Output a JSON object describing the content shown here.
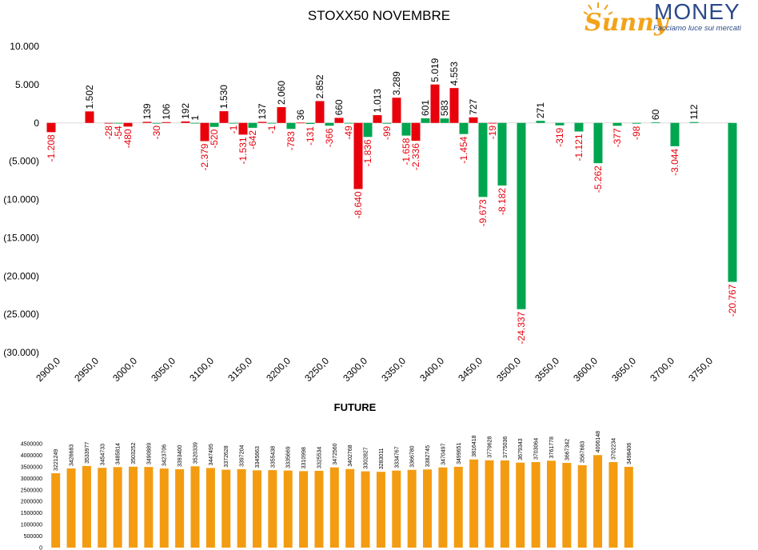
{
  "brand": {
    "name_part1": "Sunny",
    "name_part2": "MONEY",
    "tagline": "Facciamo luce sui mercati",
    "colors": {
      "sun": "#f2a31b",
      "blue": "#2b4a8a"
    }
  },
  "chart_data": [
    {
      "type": "bar",
      "title": "STOXX50 NOVEMBRE",
      "xlabel": "",
      "ylabel": "",
      "ylim": [
        -30000,
        10000
      ],
      "y_ticks": [
        10000,
        5000,
        0,
        -5000,
        -10000,
        -15000,
        -20000,
        -25000,
        -30000
      ],
      "y_tick_labels": [
        "10.000",
        "5.000",
        "0",
        "(5.000)",
        "(10.000)",
        "(15.000)",
        "(20.000)",
        "(25.000)",
        "(30.000)"
      ],
      "x_tick_labels": [
        "2900,0",
        "2950,0",
        "3000,0",
        "3050,0",
        "3100,0",
        "3150,0",
        "3200,0",
        "3250,0",
        "3300,0",
        "3350,0",
        "3400,0",
        "3450,0",
        "3500,0",
        "3550,0",
        "3600,0",
        "3650,0",
        "3700,0",
        "3750,0"
      ],
      "grid": false,
      "legend": "none",
      "colors": {
        "red_series": "#e8000b",
        "green_series": "#00a64f",
        "label_red": "#e8000b",
        "label_black": "#000000"
      },
      "series": [
        {
          "color": "red",
          "points": [
            {
              "x": 2900,
              "value": -1208,
              "label": "-1.208"
            },
            {
              "x": 2950,
              "value": 1502,
              "label": "1.502"
            },
            {
              "x": 2975,
              "value": -28,
              "label": "-28"
            },
            {
              "x": 3000,
              "value": -480,
              "label": "-480"
            },
            {
              "x": 3025,
              "value": 139,
              "label": "139"
            },
            {
              "x": 3050,
              "value": 106,
              "label": "106"
            },
            {
              "x": 3075,
              "value": 192,
              "label": "192"
            },
            {
              "x": 3100,
              "value": -2379,
              "label": "-2.379"
            },
            {
              "x": 3125,
              "value": 1530,
              "label": "1.530"
            },
            {
              "x": 3150,
              "value": -1531,
              "label": "-1.531"
            },
            {
              "x": 3175,
              "value": 137,
              "label": "137"
            },
            {
              "x": 3200,
              "value": 2060,
              "label": "2.060"
            },
            {
              "x": 3225,
              "value": 36,
              "label": "36"
            },
            {
              "x": 3250,
              "value": 2852,
              "label": "2.852"
            },
            {
              "x": 3275,
              "value": 660,
              "label": "660"
            },
            {
              "x": 3300,
              "value": -8640,
              "label": "-8.640"
            },
            {
              "x": 3325,
              "value": 1013,
              "label": "1.013"
            },
            {
              "x": 3350,
              "value": 3289,
              "label": "3.289"
            },
            {
              "x": 3375,
              "value": -2336,
              "label": "-2.336"
            },
            {
              "x": 3400,
              "value": 5019,
              "label": "5.019"
            },
            {
              "x": 3425,
              "value": 4553,
              "label": "4.553"
            },
            {
              "x": 3450,
              "value": 727,
              "label": "727"
            },
            {
              "x": 3475,
              "value": -19,
              "label": "-19"
            }
          ]
        },
        {
          "color": "green",
          "points": [
            {
              "x": 2975,
              "value": -54,
              "label": "-54"
            },
            {
              "x": 3025,
              "value": -30,
              "label": "-30"
            },
            {
              "x": 3075,
              "value": 1,
              "label": "1"
            },
            {
              "x": 3100,
              "value": -520,
              "label": "-520"
            },
            {
              "x": 3125,
              "value": -1,
              "label": "-1"
            },
            {
              "x": 3150,
              "value": -642,
              "label": "-642"
            },
            {
              "x": 3175,
              "value": -1,
              "label": "-1"
            },
            {
              "x": 3200,
              "value": -783,
              "label": "-783"
            },
            {
              "x": 3225,
              "value": -131,
              "label": "-131"
            },
            {
              "x": 3250,
              "value": -366,
              "label": "-366"
            },
            {
              "x": 3275,
              "value": -49,
              "label": "-49"
            },
            {
              "x": 3300,
              "value": -1836,
              "label": "-1.836"
            },
            {
              "x": 3325,
              "value": -99,
              "label": "-99"
            },
            {
              "x": 3350,
              "value": -1658,
              "label": "-1.658"
            },
            {
              "x": 3375,
              "value": 601,
              "label": "601"
            },
            {
              "x": 3400,
              "value": 583,
              "label": "583"
            },
            {
              "x": 3425,
              "value": -1454,
              "label": "-1.454"
            },
            {
              "x": 3450,
              "value": -9673,
              "label": "-9.673"
            },
            {
              "x": 3475,
              "value": -8182,
              "label": "-8.182"
            },
            {
              "x": 3500,
              "value": -24337,
              "label": "-24.337"
            },
            {
              "x": 3525,
              "value": 271,
              "label": "271"
            },
            {
              "x": 3550,
              "value": -319,
              "label": "-319"
            },
            {
              "x": 3575,
              "value": -1121,
              "label": "-1.121"
            },
            {
              "x": 3600,
              "value": -5262,
              "label": "-5.262"
            },
            {
              "x": 3625,
              "value": -377,
              "label": "-377"
            },
            {
              "x": 3650,
              "value": -98,
              "label": "-98"
            },
            {
              "x": 3675,
              "value": 60,
              "label": "60"
            },
            {
              "x": 3700,
              "value": -3044,
              "label": "-3.044"
            },
            {
              "x": 3725,
              "value": 112,
              "label": "112"
            },
            {
              "x": 3775,
              "value": -20767,
              "label": "-20.767"
            }
          ]
        }
      ]
    },
    {
      "type": "bar",
      "title": "FUTURE",
      "xlabel": "",
      "ylabel": "",
      "ylim": [
        0,
        4500000
      ],
      "y_ticks": [
        4500000,
        4000000,
        3500000,
        3000000,
        2500000,
        2000000,
        1500000,
        1000000,
        500000,
        0
      ],
      "y_tick_labels": [
        "4500000",
        "4000000",
        "3500000",
        "3000000",
        "2500000",
        "2000000",
        "1500000",
        "1000000",
        "500000",
        "0"
      ],
      "grid": false,
      "legend": "none",
      "colors": {
        "bar": "#f39c12"
      },
      "values": [
        3221249,
        3426683,
        3533977,
        3454733,
        3485814,
        3503252,
        3490889,
        3423706,
        3393400,
        3520339,
        3447495,
        3372628,
        3397204,
        3345663,
        3355438,
        3335669,
        3310998,
        3325534,
        3472560,
        3402768,
        3302827,
        3283011,
        3334767,
        3366780,
        3382745,
        3470497,
        3499651,
        3816418,
        3779628,
        3775036,
        3679343,
        3703064,
        3761778,
        3667342,
        3567683,
        4006148,
        3702234,
        3498406
      ]
    }
  ]
}
